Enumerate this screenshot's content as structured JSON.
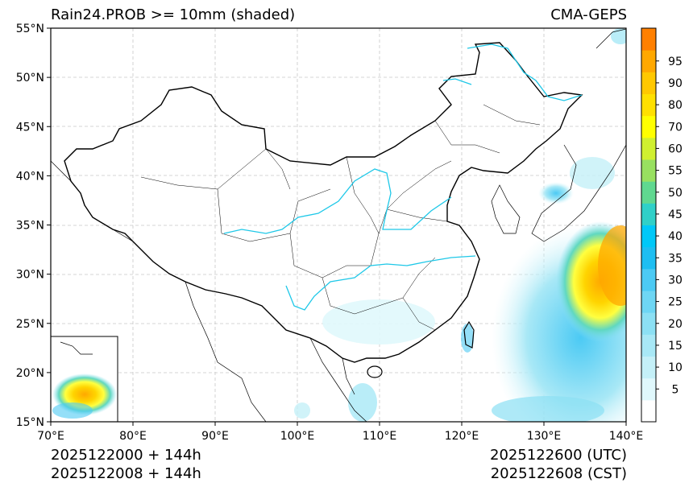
{
  "title": "Rain24.PROB >= 10mm (shaded)",
  "model": "CMA-GEPS",
  "footer": {
    "init_utc": "2025122000 + 144h",
    "init_cst": "2025122008 + 144h",
    "valid_utc": "2025122600 (UTC)",
    "valid_cst": "2025122608 (CST)"
  },
  "axes": {
    "lon_labels": [
      "70°E",
      "80°E",
      "90°E",
      "100°E",
      "110°E",
      "120°E",
      "130°E",
      "140°E"
    ],
    "lat_labels": [
      "55°N",
      "50°N",
      "45°N",
      "40°N",
      "35°N",
      "30°N",
      "25°N",
      "20°N",
      "15°N"
    ],
    "lon_range": [
      70,
      140
    ],
    "lat_range": [
      15,
      55
    ]
  },
  "colorbar": {
    "labels": [
      "5",
      "10",
      "15",
      "20",
      "25",
      "30",
      "35",
      "40",
      "45",
      "50",
      "55",
      "60",
      "70",
      "80",
      "90",
      "95"
    ],
    "colors": [
      "#ffffff",
      "#e0f8fc",
      "#c4f0f8",
      "#a8e8f6",
      "#8ce0f4",
      "#6ed6f4",
      "#4ccaf4",
      "#1ebef2",
      "#00c8f8",
      "#30d0c8",
      "#60d890",
      "#98e060",
      "#d0f030",
      "#ffff00",
      "#ffe000",
      "#ffc800",
      "#ffa800",
      "#ff8000"
    ]
  },
  "icons": {
    "coastline": "coastline-icon",
    "river": "river-icon",
    "inset": "south-china-sea-inset"
  }
}
